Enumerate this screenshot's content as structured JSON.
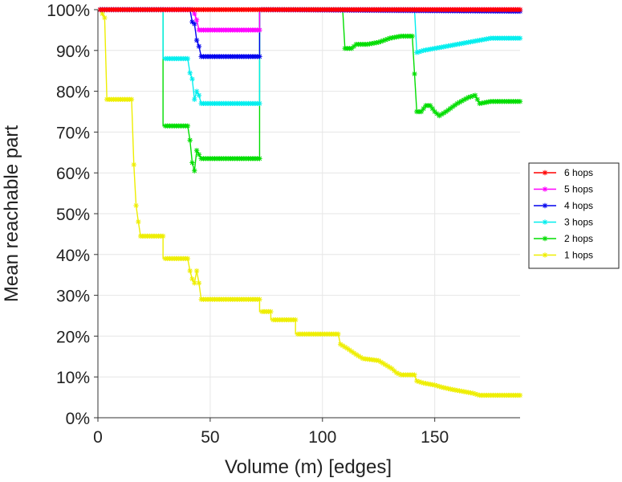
{
  "chart_data": {
    "type": "line",
    "title": "",
    "xlabel": "Volume (m) [edges]",
    "ylabel": "Mean reachable part",
    "xlim": [
      0,
      188
    ],
    "ylim": [
      0,
      100
    ],
    "x_ticks": [
      0,
      50,
      100,
      150
    ],
    "y_ticks": [
      0,
      10,
      20,
      30,
      40,
      50,
      60,
      70,
      80,
      90,
      100
    ],
    "y_tick_labels": [
      "0%",
      "10%",
      "20%",
      "30%",
      "40%",
      "50%",
      "60%",
      "70%",
      "80%",
      "90%",
      "100%"
    ],
    "x_tick_labels": [
      "0",
      "50",
      "100",
      "150"
    ],
    "grid": true,
    "legend_position": "right",
    "marker": "asterisk",
    "series": [
      {
        "name": "6 hops",
        "color": "#ff0000",
        "points": [
          [
            1,
            100
          ],
          [
            188,
            100
          ]
        ]
      },
      {
        "name": "5 hops",
        "color": "#ff00ff",
        "points": [
          [
            1,
            100
          ],
          [
            42,
            100
          ],
          [
            43,
            99
          ],
          [
            44,
            97.5
          ],
          [
            45,
            95
          ],
          [
            72,
            95
          ],
          [
            72,
            100
          ],
          [
            188,
            100
          ]
        ]
      },
      {
        "name": "4 hops",
        "color": "#0000ee",
        "points": [
          [
            1,
            100
          ],
          [
            41,
            100
          ],
          [
            42,
            97
          ],
          [
            43,
            96.5
          ],
          [
            44,
            92.5
          ],
          [
            45,
            91
          ],
          [
            46,
            88.5
          ],
          [
            72,
            88.5
          ],
          [
            72,
            100
          ],
          [
            188,
            99.6
          ]
        ]
      },
      {
        "name": "3 hops",
        "color": "#00eeee",
        "points": [
          [
            1,
            100
          ],
          [
            29,
            100
          ],
          [
            29,
            88
          ],
          [
            40,
            88
          ],
          [
            41,
            84.5
          ],
          [
            42,
            83
          ],
          [
            43,
            78
          ],
          [
            44,
            80
          ],
          [
            45,
            79
          ],
          [
            46,
            77
          ],
          [
            72,
            77
          ],
          [
            72,
            100
          ],
          [
            141,
            100
          ],
          [
            142,
            89.5
          ],
          [
            145,
            90
          ],
          [
            150,
            90.5
          ],
          [
            160,
            91.5
          ],
          [
            170,
            92.5
          ],
          [
            175,
            93
          ],
          [
            188,
            93
          ]
        ]
      },
      {
        "name": "2 hops",
        "color": "#00dd00",
        "points": [
          [
            1,
            100
          ],
          [
            29,
            100
          ],
          [
            29,
            71.5
          ],
          [
            40,
            71.5
          ],
          [
            41,
            68
          ],
          [
            42,
            62.5
          ],
          [
            43,
            60.5
          ],
          [
            44,
            65.5
          ],
          [
            45,
            64.5
          ],
          [
            46,
            63.5
          ],
          [
            72,
            63.5
          ],
          [
            72,
            100
          ],
          [
            109,
            100
          ],
          [
            110,
            90.5
          ],
          [
            113,
            90.5
          ],
          [
            115,
            91.5
          ],
          [
            120,
            91.5
          ],
          [
            125,
            92
          ],
          [
            130,
            93
          ],
          [
            135,
            93.5
          ],
          [
            140,
            93.5
          ],
          [
            142,
            75
          ],
          [
            144,
            75
          ],
          [
            146,
            76.5
          ],
          [
            148,
            76.5
          ],
          [
            150,
            75
          ],
          [
            152,
            74
          ],
          [
            155,
            75
          ],
          [
            160,
            77
          ],
          [
            165,
            78.5
          ],
          [
            168,
            79
          ],
          [
            170,
            77
          ],
          [
            175,
            77.5
          ],
          [
            188,
            77.5
          ]
        ]
      },
      {
        "name": "1 hops",
        "color": "#eeee00",
        "points": [
          [
            1,
            100
          ],
          [
            3,
            98
          ],
          [
            4,
            78
          ],
          [
            15,
            78
          ],
          [
            16,
            62
          ],
          [
            17,
            52
          ],
          [
            18,
            48
          ],
          [
            19,
            44.5
          ],
          [
            29,
            44.5
          ],
          [
            29,
            39
          ],
          [
            40,
            39
          ],
          [
            41,
            36
          ],
          [
            42,
            34
          ],
          [
            43,
            33
          ],
          [
            44,
            36
          ],
          [
            45,
            33
          ],
          [
            46,
            29
          ],
          [
            72,
            29
          ],
          [
            72,
            26
          ],
          [
            77,
            26
          ],
          [
            77,
            24
          ],
          [
            88,
            24
          ],
          [
            88,
            20.5
          ],
          [
            107,
            20.5
          ],
          [
            108,
            18
          ],
          [
            111,
            17
          ],
          [
            115,
            15.5
          ],
          [
            118,
            14.5
          ],
          [
            125,
            14
          ],
          [
            128,
            13
          ],
          [
            131,
            12
          ],
          [
            133,
            11
          ],
          [
            135,
            10.5
          ],
          [
            141,
            10.5
          ],
          [
            142,
            9
          ],
          [
            145,
            8.5
          ],
          [
            150,
            8
          ],
          [
            153,
            7.5
          ],
          [
            157,
            7
          ],
          [
            162,
            6.5
          ],
          [
            167,
            6
          ],
          [
            170,
            5.5
          ],
          [
            175,
            5.5
          ],
          [
            188,
            5.5
          ]
        ]
      }
    ],
    "legend_order": [
      "6 hops",
      "5 hops",
      "4 hops",
      "3 hops",
      "2 hops",
      "1 hops"
    ]
  }
}
